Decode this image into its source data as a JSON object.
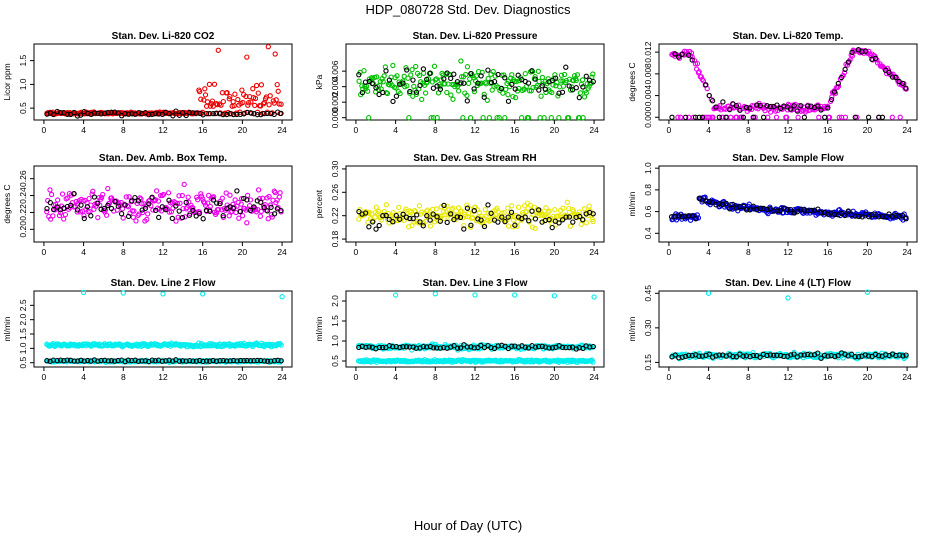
{
  "figure": {
    "title": "HDP_080728  Std. Dev. Diagnostics",
    "xlabel": "Hour of Day (UTC)"
  },
  "colors": {
    "black": "#000000",
    "red": "#ee0000",
    "green": "#00c000",
    "magenta": "#ee00ee",
    "yellow": "#e8e800",
    "blue": "#0000dd",
    "cyan": "#00eeee"
  },
  "chart_data": [
    {
      "id": "co2",
      "type": "scatter",
      "title": "Stan. Dev. Li-820 CO2",
      "ylabel": "Licor ppm",
      "xlim": [
        -1,
        25
      ],
      "ylim": [
        0.25,
        1.85
      ],
      "xticks": [
        0,
        4,
        8,
        12,
        16,
        20,
        24
      ],
      "yticks": [
        0.5,
        1.0,
        1.5
      ],
      "ytick_labels": [
        "0.5",
        "1.0",
        "1.5"
      ],
      "series": [
        {
          "name": "primary",
          "color": "red",
          "base": 0.38,
          "spread": 0.06,
          "pattern": "co2"
        },
        {
          "name": "secondary",
          "color": "black",
          "base": 0.38,
          "spread": 0.05,
          "pattern": "flat"
        }
      ]
    },
    {
      "id": "pressure",
      "type": "scatter",
      "title": "Stan. Dev. Li-820 Pressure",
      "ylabel": "kPa",
      "xlim": [
        -1,
        25
      ],
      "ylim": [
        -0.0003,
        0.0095
      ],
      "xticks": [
        0,
        4,
        8,
        12,
        16,
        20,
        24
      ],
      "yticks": [
        0,
        0.002,
        0.004,
        0.006
      ],
      "ytick_labels": [
        "0.000",
        "0.002",
        "0.004",
        "0.006"
      ],
      "series": [
        {
          "name": "primary",
          "color": "green",
          "base": 0.0045,
          "spread": 0.0022,
          "pattern": "pressure"
        },
        {
          "name": "secondary",
          "color": "black",
          "base": 0.0045,
          "spread": 0.002,
          "pattern": "flat"
        }
      ]
    },
    {
      "id": "temp",
      "type": "scatter",
      "title": "Stan. Dev. Li-820 Temp.",
      "ylabel": "degrees C",
      "xlim": [
        -1,
        25
      ],
      "ylim": [
        -0.0005,
        0.0135
      ],
      "xticks": [
        0,
        4,
        8,
        12,
        16,
        20,
        24
      ],
      "yticks": [
        0,
        0.004,
        0.008,
        0.012
      ],
      "ytick_labels": [
        "0.000",
        "0.004",
        "0.008",
        "0.012"
      ],
      "series": [
        {
          "name": "primary",
          "color": "magenta",
          "base": 0.002,
          "spread": 0.001,
          "pattern": "temp"
        },
        {
          "name": "secondary",
          "color": "black",
          "base": 0.002,
          "spread": 0.001,
          "pattern": "temp"
        }
      ]
    },
    {
      "id": "ambbox",
      "type": "scatter",
      "title": "Stan. Dev. Amb. Box Temp.",
      "ylabel": "degrees C",
      "xlim": [
        -1,
        25
      ],
      "ylim": [
        0.185,
        0.275
      ],
      "xticks": [
        0,
        4,
        8,
        12,
        16,
        20,
        24
      ],
      "yticks": [
        0.2,
        0.22,
        0.24,
        0.26
      ],
      "ytick_labels": [
        "0.20",
        "0.22",
        "0.24",
        "0.26"
      ],
      "series": [
        {
          "name": "primary",
          "color": "magenta",
          "base": 0.228,
          "spread": 0.02,
          "pattern": "flat"
        },
        {
          "name": "secondary",
          "color": "black",
          "base": 0.226,
          "spread": 0.016,
          "pattern": "flat"
        }
      ]
    },
    {
      "id": "rh",
      "type": "scatter",
      "title": "Stan. Dev. Gas Stream RH",
      "ylabel": "percent",
      "xlim": [
        -1,
        25
      ],
      "ylim": [
        0.175,
        0.305
      ],
      "xticks": [
        0,
        4,
        8,
        12,
        16,
        20,
        24
      ],
      "yticks": [
        0.18,
        0.22,
        0.26,
        0.3
      ],
      "ytick_labels": [
        "0.18",
        "0.22",
        "0.26",
        "0.30"
      ],
      "series": [
        {
          "name": "primary",
          "color": "yellow",
          "base": 0.22,
          "spread": 0.02,
          "pattern": "flat"
        },
        {
          "name": "secondary",
          "color": "black",
          "base": 0.215,
          "spread": 0.017,
          "pattern": "flat"
        }
      ]
    },
    {
      "id": "sampleflow",
      "type": "scatter",
      "title": "Stan. Dev. Sample Flow",
      "ylabel": "ml/min",
      "xlim": [
        -1,
        25
      ],
      "ylim": [
        0.32,
        1.02
      ],
      "xticks": [
        0,
        4,
        8,
        12,
        16,
        20,
        24
      ],
      "yticks": [
        0.4,
        0.6,
        0.8,
        1.0
      ],
      "ytick_labels": [
        "0.4",
        "0.6",
        "0.8",
        "1.0"
      ],
      "series": [
        {
          "name": "primary",
          "color": "blue",
          "base": 0.6,
          "spread": 0.05,
          "pattern": "sample"
        },
        {
          "name": "secondary",
          "color": "black",
          "base": 0.6,
          "spread": 0.04,
          "pattern": "sample"
        }
      ]
    },
    {
      "id": "line2",
      "type": "scatter",
      "title": "Stan. Dev. Line 2 Flow",
      "ylabel": "ml/min",
      "xlim": [
        -1,
        25
      ],
      "ylim": [
        0.35,
        3.0
      ],
      "xticks": [
        0,
        4,
        8,
        12,
        16,
        20,
        24
      ],
      "yticks": [
        0.5,
        1.0,
        1.5,
        2.0,
        2.5
      ],
      "ytick_labels": [
        "0.5",
        "1.0",
        "1.5",
        "2.0",
        "2.5"
      ],
      "series": [
        {
          "name": "primary-high",
          "color": "cyan",
          "base": 1.12,
          "spread": 0.06,
          "pattern": "flat"
        },
        {
          "name": "primary-low",
          "color": "cyan",
          "base": 0.55,
          "spread": 0.03,
          "pattern": "flat"
        },
        {
          "name": "secondary",
          "color": "black",
          "base": 0.57,
          "spread": 0.03,
          "pattern": "flat"
        }
      ],
      "outliers": [
        [
          4,
          2.95
        ],
        [
          8,
          2.93
        ],
        [
          12,
          2.9
        ],
        [
          16,
          2.9
        ],
        [
          24,
          2.8
        ]
      ]
    },
    {
      "id": "line3",
      "type": "scatter",
      "title": "Stan. Dev. Line 3 Flow",
      "ylabel": "ml/min",
      "xlim": [
        -1,
        25
      ],
      "ylim": [
        0.35,
        2.25
      ],
      "xticks": [
        0,
        4,
        8,
        12,
        16,
        20,
        24
      ],
      "yticks": [
        0.5,
        1.0,
        1.5,
        2.0
      ],
      "ytick_labels": [
        "0.5",
        "1.0",
        "1.5",
        "2.0"
      ],
      "series": [
        {
          "name": "primary-high",
          "color": "cyan",
          "base": 0.85,
          "spread": 0.06,
          "pattern": "flat"
        },
        {
          "name": "primary-low",
          "color": "cyan",
          "base": 0.5,
          "spread": 0.03,
          "pattern": "flat"
        },
        {
          "name": "secondary",
          "color": "black",
          "base": 0.85,
          "spread": 0.05,
          "pattern": "flat"
        }
      ],
      "outliers": [
        [
          4,
          2.15
        ],
        [
          8,
          2.18
        ],
        [
          12,
          2.15
        ],
        [
          16,
          2.15
        ],
        [
          20,
          2.13
        ],
        [
          24,
          2.1
        ]
      ]
    },
    {
      "id": "line4",
      "type": "scatter",
      "title": "Stan. Dev. Line 4 (LT) Flow",
      "ylabel": "ml/min",
      "xlim": [
        -1,
        25
      ],
      "ylim": [
        0.13,
        0.46
      ],
      "xticks": [
        0,
        4,
        8,
        12,
        16,
        20,
        24
      ],
      "yticks": [
        0.15,
        0.3,
        0.45
      ],
      "ytick_labels": [
        "0.15",
        "0.30",
        "0.45"
      ],
      "series": [
        {
          "name": "primary",
          "color": "cyan",
          "base": 0.18,
          "spread": 0.012,
          "pattern": "flat"
        },
        {
          "name": "secondary",
          "color": "black",
          "base": 0.18,
          "spread": 0.01,
          "pattern": "flat"
        }
      ],
      "outliers": [
        [
          4,
          0.45
        ],
        [
          12,
          0.43
        ],
        [
          20,
          0.455
        ]
      ]
    }
  ]
}
